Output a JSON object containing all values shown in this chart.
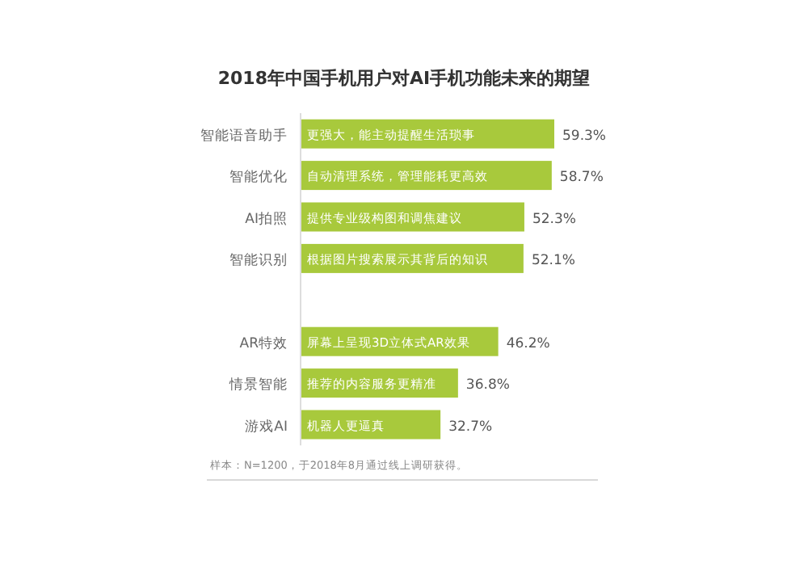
{
  "chart_data": {
    "type": "bar",
    "orientation": "horizontal",
    "title": "2018年中国手机用户对AI手机功能未来的期望",
    "categories": [
      "智能语音助手",
      "智能优化",
      "AI拍照",
      "智能识别",
      null,
      "AR特效",
      "情景智能",
      "游戏AI"
    ],
    "values": [
      59.3,
      58.7,
      52.3,
      52.1,
      null,
      46.2,
      36.8,
      32.7
    ],
    "value_labels": [
      "59.3%",
      "58.7%",
      "52.3%",
      "52.1%",
      null,
      "46.2%",
      "36.8%",
      "32.7%"
    ],
    "color": "#a8c93c",
    "annotations": [
      {
        "text": "更强大，能主动提醒生活琐事",
        "y": "智能语音助手"
      },
      {
        "text": "自动清理系统，管理能耗更高效",
        "y": "智能优化"
      },
      {
        "text": "提供专业级构图和调焦建议",
        "y": "AI拍照"
      },
      {
        "text": "根据图片搜索展示其背后的知识",
        "y": "智能识别"
      },
      {
        "text": "屏幕上呈现3D立体式AR效果",
        "y": "AR特效"
      },
      {
        "text": "推荐的内容服务更精准",
        "y": "情景智能"
      },
      {
        "text": "机器人更逼真",
        "y": "游戏AI"
      },
      "样本：N=1200，于2018年8月通过线上调研获得。"
    ]
  }
}
